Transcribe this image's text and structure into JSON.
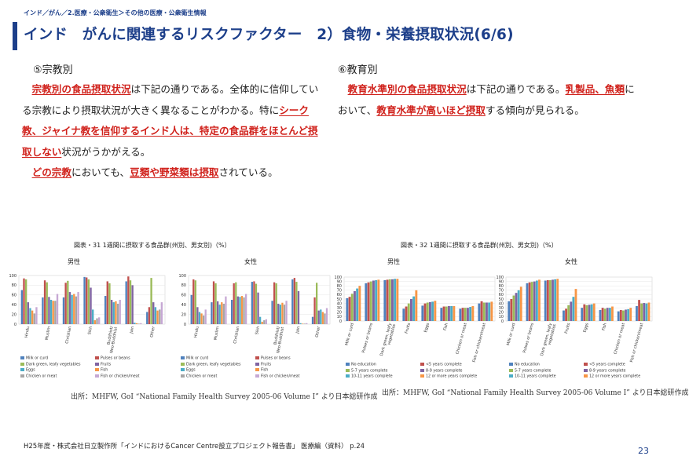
{
  "breadcrumb": "インド／がん／2.医療・公衆衛生＞その他の医療・公衆衛生情報",
  "title": "インド　がんに関連するリスクファクター　2）食物・栄養摂取状況(6/6)",
  "left": {
    "heading": "⑤宗教別",
    "para1": [
      {
        "t": "　",
        "h": false
      },
      {
        "t": "宗教別の食品摂取状況",
        "h": true
      },
      {
        "t": "は下記の通りである。全体的に信仰している宗教により摂取状況が大きく異なることがわかる。特に",
        "h": false
      },
      {
        "t": "シーク教、ジャイナ教を信仰するインド人は、特定の食品群をほとんど摂取しない",
        "h": true
      },
      {
        "t": "状況がうかがえる。",
        "h": false
      }
    ],
    "para2": [
      {
        "t": "　",
        "h": false
      },
      {
        "t": "どの宗教",
        "h": true
      },
      {
        "t": "においても、",
        "h": false
      },
      {
        "t": "豆類や野菜類は摂取",
        "h": true
      },
      {
        "t": "されている。",
        "h": false
      }
    ]
  },
  "right": {
    "heading": "⑥教育別",
    "para1": [
      {
        "t": "　",
        "h": false
      },
      {
        "t": "教育水準別の食品摂取状況",
        "h": true
      },
      {
        "t": "は下記の通りである。",
        "h": false
      },
      {
        "t": "乳製品、魚類",
        "h": true
      },
      {
        "t": "において、",
        "h": false
      },
      {
        "t": "教育水準が高いほど摂取",
        "h": true
      },
      {
        "t": "する傾向が見られる。",
        "h": false
      }
    ]
  },
  "fig31": {
    "caption": "図表・31 1週間に摂取する食品群(州別、男女別)（%）",
    "source": "出所：MHFW, GoI “National Family Health Survey 2005-06 Volume I” より日本総研作成"
  },
  "fig32": {
    "caption": "図表・32 1週間に摂取する食品群(州別、男女別)（%）",
    "source": "出所：MHFW, GoI “National Family Health Survey 2005-06 Volume I” より日本総研作成"
  },
  "footer": "H25年度・株式会社日立製作所「インドにおけるCancer Centre設立プロジェクト報告書」 医療編（資料） p.24",
  "page_number": "23",
  "chart_data": [
    {
      "type": "bar",
      "title": "男性",
      "ylim": [
        0,
        100
      ],
      "yticks": [
        0,
        20,
        40,
        60,
        80,
        100
      ],
      "categories": [
        "Hindu",
        "Muslim",
        "Christian",
        "Sikh",
        "Buddhist/\nNeo-Buddhist",
        "Jain",
        "Other"
      ],
      "series": [
        {
          "name": "Milk or curd",
          "color": "#4f81bd",
          "values": [
            70,
            55,
            55,
            97,
            58,
            88,
            25
          ]
        },
        {
          "name": "Pulses or beans",
          "color": "#c0504d",
          "values": [
            94,
            90,
            85,
            96,
            88,
            98,
            35
          ]
        },
        {
          "name": "Dark green, leafy vegetables",
          "color": "#9bbb59",
          "values": [
            92,
            86,
            89,
            92,
            84,
            90,
            95
          ]
        },
        {
          "name": "Fruits",
          "color": "#8064a2",
          "values": [
            45,
            56,
            66,
            75,
            50,
            80,
            45
          ]
        },
        {
          "name": "Eggs",
          "color": "#4bacc6",
          "values": [
            33,
            50,
            60,
            30,
            45,
            3,
            35
          ]
        },
        {
          "name": "Fish",
          "color": "#f79646",
          "values": [
            28,
            48,
            62,
            8,
            47,
            2,
            28
          ]
        },
        {
          "name": "Chicken or meat",
          "color": "#a5a5a5",
          "values": [
            22,
            48,
            57,
            12,
            42,
            1,
            30
          ]
        },
        {
          "name": "Fish or chicken/meat",
          "color": "#c6a8d4",
          "values": [
            35,
            62,
            66,
            14,
            50,
            2,
            45
          ]
        }
      ]
    },
    {
      "type": "bar",
      "title": "女性",
      "ylim": [
        0,
        100
      ],
      "yticks": [
        0,
        20,
        40,
        60,
        80,
        100
      ],
      "categories": [
        "Hindu",
        "Muslim",
        "Christian",
        "Sikh",
        "Buddhist/\nNeo-Buddhist",
        "Jain",
        "Other"
      ],
      "series": [
        {
          "name": "Milk or curd",
          "color": "#4f81bd",
          "values": [
            60,
            45,
            50,
            87,
            48,
            92,
            15
          ]
        },
        {
          "name": "Pulses or beans",
          "color": "#c0504d",
          "values": [
            92,
            88,
            84,
            88,
            86,
            95,
            55
          ]
        },
        {
          "name": "Dark green, leafy vegetables",
          "color": "#9bbb59",
          "values": [
            90,
            84,
            86,
            83,
            84,
            87,
            85
          ]
        },
        {
          "name": "Fruits",
          "color": "#8064a2",
          "values": [
            35,
            47,
            57,
            65,
            42,
            68,
            28
          ]
        },
        {
          "name": "Eggs",
          "color": "#4bacc6",
          "values": [
            25,
            40,
            56,
            15,
            40,
            2,
            30
          ]
        },
        {
          "name": "Fish",
          "color": "#f79646",
          "values": [
            22,
            45,
            58,
            5,
            44,
            1,
            25
          ]
        },
        {
          "name": "Chicken or meat",
          "color": "#a5a5a5",
          "values": [
            18,
            42,
            55,
            8,
            40,
            1,
            22
          ]
        },
        {
          "name": "Fish or chicken/meat",
          "color": "#c6a8d4",
          "values": [
            30,
            57,
            62,
            10,
            48,
            2,
            33
          ]
        }
      ]
    },
    {
      "type": "bar",
      "title": "男性",
      "ylim": [
        0,
        100
      ],
      "yticks": [
        0,
        10,
        20,
        30,
        40,
        50,
        60,
        70,
        80,
        90,
        100
      ],
      "categories": [
        "Milk or curd",
        "Pulses or beans",
        "Dark green, leafy\nvegetables",
        "Fruits",
        "Eggs",
        "Fish",
        "Chicken or meat",
        "Fish or chicken/meat"
      ],
      "series": [
        {
          "name": "No education",
          "color": "#4f81bd",
          "values": [
            52,
            86,
            93,
            28,
            35,
            30,
            28,
            40
          ]
        },
        {
          "name": "<5 years complete",
          "color": "#c0504d",
          "values": [
            55,
            88,
            94,
            33,
            40,
            33,
            30,
            45
          ]
        },
        {
          "name": "5-7 years complete",
          "color": "#9bbb59",
          "values": [
            62,
            90,
            95,
            40,
            42,
            33,
            30,
            42
          ]
        },
        {
          "name": "8-9 years complete",
          "color": "#8064a2",
          "values": [
            68,
            92,
            95,
            50,
            43,
            34,
            30,
            42
          ]
        },
        {
          "name": "10-11 years complete",
          "color": "#4bacc6",
          "values": [
            74,
            93,
            96,
            56,
            44,
            34,
            32,
            42
          ]
        },
        {
          "name": "12 or more years complete",
          "color": "#f79646",
          "values": [
            80,
            94,
            96,
            70,
            46,
            34,
            34,
            44
          ]
        }
      ]
    },
    {
      "type": "bar",
      "title": "女性",
      "ylim": [
        0,
        100
      ],
      "yticks": [
        0,
        10,
        20,
        30,
        40,
        50,
        60,
        70,
        80,
        90,
        100
      ],
      "categories": [
        "Milk or curd",
        "Pulses or beans",
        "Dark green, leafy\nvegetables",
        "Fruits",
        "Eggs",
        "Fish",
        "Chicken or meat",
        "Fish or chicken/meat"
      ],
      "series": [
        {
          "name": "No education",
          "color": "#4f81bd",
          "values": [
            45,
            86,
            92,
            24,
            30,
            25,
            22,
            34
          ]
        },
        {
          "name": "<5 years complete",
          "color": "#c0504d",
          "values": [
            50,
            88,
            93,
            28,
            38,
            30,
            25,
            48
          ]
        },
        {
          "name": "5-7 years complete",
          "color": "#9bbb59",
          "values": [
            58,
            89,
            93,
            36,
            36,
            28,
            24,
            40
          ]
        },
        {
          "name": "8-9 years complete",
          "color": "#8064a2",
          "values": [
            64,
            90,
            94,
            44,
            37,
            30,
            26,
            41
          ]
        },
        {
          "name": "10-11 years complete",
          "color": "#4bacc6",
          "values": [
            70,
            92,
            95,
            55,
            38,
            30,
            27,
            40
          ]
        },
        {
          "name": "12 or more years complete",
          "color": "#f79646",
          "values": [
            78,
            94,
            96,
            73,
            40,
            33,
            30,
            42
          ]
        }
      ]
    }
  ]
}
